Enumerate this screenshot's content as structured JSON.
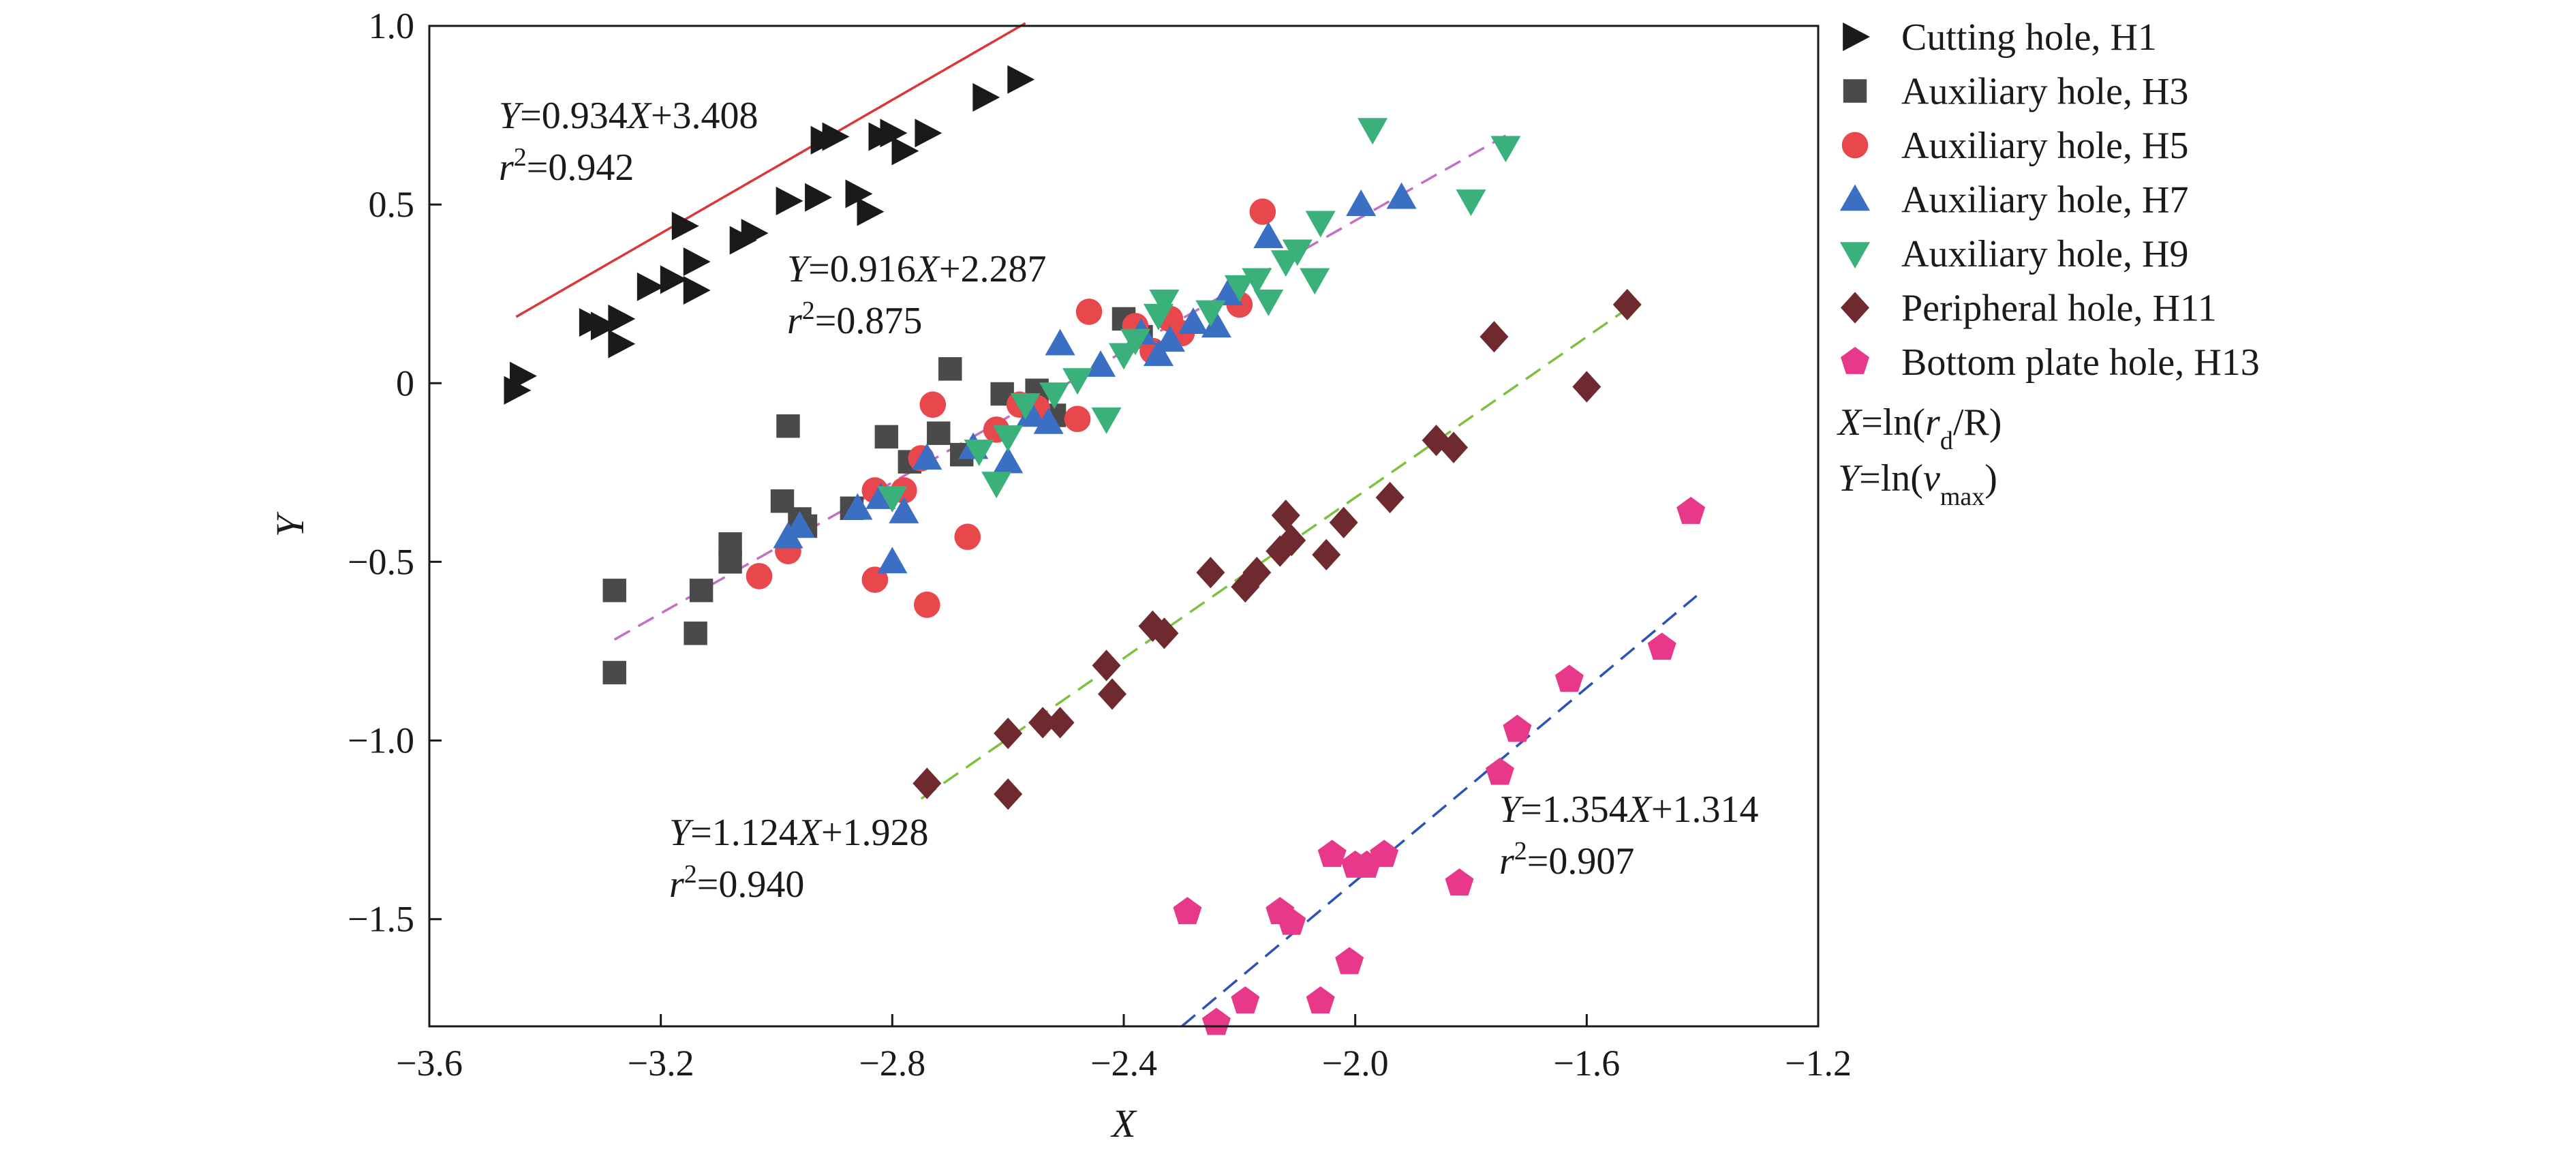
{
  "chart_data": {
    "type": "scatter",
    "xlabel": "X",
    "ylabel": "Y",
    "xlim": [
      -3.6,
      -1.2
    ],
    "ylim": [
      -1.8,
      1.0
    ],
    "xticks": [
      -3.6,
      -3.2,
      -2.8,
      -2.4,
      -2.0,
      -1.6,
      -1.2
    ],
    "xtick_labels": [
      "−3.6",
      "−3.2",
      "−2.8",
      "−2.4",
      "−2.0",
      "−1.6",
      "−1.2"
    ],
    "yticks": [
      -1.5,
      -1.0,
      -0.5,
      0,
      0.5,
      1.0
    ],
    "ytick_labels": [
      "−1.5",
      "−1.0",
      "−0.5",
      "0",
      "0.5",
      "1.0"
    ],
    "grid": false,
    "legend_position": "outside-right",
    "legend_notes": [
      {
        "lhs": "X",
        "eq": "=ln(",
        "var": "r",
        "sub": "d",
        "tail": "/R)"
      },
      {
        "lhs": "Y",
        "eq": "=ln(",
        "var": "v",
        "sub": "max",
        "tail": ")"
      }
    ],
    "series": [
      {
        "name": "Cutting hole, H1",
        "marker": "triangle-right",
        "color": "#1a1a1a",
        "points": [
          [
            -3.45,
            -0.02
          ],
          [
            -3.44,
            0.02
          ],
          [
            -3.32,
            0.17
          ],
          [
            -3.3,
            0.16
          ],
          [
            -3.27,
            0.18
          ],
          [
            -3.27,
            0.11
          ],
          [
            -3.22,
            0.27
          ],
          [
            -3.18,
            0.29
          ],
          [
            -3.16,
            0.44
          ],
          [
            -3.14,
            0.26
          ],
          [
            -3.14,
            0.34
          ],
          [
            -3.06,
            0.4
          ],
          [
            -3.04,
            0.42
          ],
          [
            -2.98,
            0.51
          ],
          [
            -2.93,
            0.52
          ],
          [
            -2.92,
            0.68
          ],
          [
            -2.9,
            0.69
          ],
          [
            -2.86,
            0.53
          ],
          [
            -2.84,
            0.48
          ],
          [
            -2.82,
            0.69
          ],
          [
            -2.8,
            0.7
          ],
          [
            -2.78,
            0.65
          ],
          [
            -2.74,
            0.7
          ],
          [
            -2.64,
            0.8
          ],
          [
            -2.58,
            0.85
          ]
        ]
      },
      {
        "name": "Auxiliary hole, H3",
        "marker": "square",
        "color": "#4a4a4a",
        "points": [
          [
            -3.28,
            -0.58
          ],
          [
            -3.28,
            -0.81
          ],
          [
            -3.14,
            -0.7
          ],
          [
            -3.13,
            -0.58
          ],
          [
            -3.08,
            -0.45
          ],
          [
            -3.08,
            -0.5
          ],
          [
            -2.99,
            -0.33
          ],
          [
            -2.98,
            -0.12
          ],
          [
            -2.96,
            -0.38
          ],
          [
            -2.95,
            -0.4
          ],
          [
            -2.87,
            -0.35
          ],
          [
            -2.81,
            -0.15
          ],
          [
            -2.77,
            -0.22
          ],
          [
            -2.72,
            -0.14
          ],
          [
            -2.7,
            0.04
          ],
          [
            -2.68,
            -0.2
          ],
          [
            -2.61,
            -0.03
          ],
          [
            -2.55,
            -0.02
          ],
          [
            -2.52,
            -0.09
          ],
          [
            -2.4,
            0.18
          ],
          [
            -2.37,
            0.13
          ]
        ]
      },
      {
        "name": "Auxiliary hole, H5",
        "marker": "circle",
        "color": "#e8474c",
        "points": [
          [
            -3.03,
            -0.54
          ],
          [
            -2.98,
            -0.47
          ],
          [
            -2.83,
            -0.55
          ],
          [
            -2.83,
            -0.3
          ],
          [
            -2.78,
            -0.3
          ],
          [
            -2.75,
            -0.21
          ],
          [
            -2.74,
            -0.62
          ],
          [
            -2.73,
            -0.06
          ],
          [
            -2.67,
            -0.43
          ],
          [
            -2.62,
            -0.13
          ],
          [
            -2.58,
            -0.06
          ],
          [
            -2.55,
            -0.07
          ],
          [
            -2.48,
            -0.1
          ],
          [
            -2.46,
            0.2
          ],
          [
            -2.38,
            0.16
          ],
          [
            -2.35,
            0.09
          ],
          [
            -2.32,
            0.18
          ],
          [
            -2.3,
            0.14
          ],
          [
            -2.2,
            0.22
          ],
          [
            -2.16,
            0.48
          ]
        ]
      },
      {
        "name": "Auxiliary hole, H7",
        "marker": "triangle-up",
        "color": "#3a6fc4",
        "points": [
          [
            -2.98,
            -0.43
          ],
          [
            -2.96,
            -0.4
          ],
          [
            -2.86,
            -0.35
          ],
          [
            -2.82,
            -0.32
          ],
          [
            -2.8,
            -0.5
          ],
          [
            -2.78,
            -0.36
          ],
          [
            -2.74,
            -0.21
          ],
          [
            -2.66,
            -0.18
          ],
          [
            -2.6,
            -0.22
          ],
          [
            -2.56,
            -0.09
          ],
          [
            -2.53,
            -0.11
          ],
          [
            -2.51,
            0.11
          ],
          [
            -2.44,
            0.05
          ],
          [
            -2.37,
            0.14
          ],
          [
            -2.34,
            0.08
          ],
          [
            -2.32,
            0.12
          ],
          [
            -2.28,
            0.17
          ],
          [
            -2.24,
            0.16
          ],
          [
            -2.22,
            0.25
          ],
          [
            -2.15,
            0.41
          ],
          [
            -1.99,
            0.5
          ],
          [
            -1.92,
            0.52
          ]
        ]
      },
      {
        "name": "Auxiliary hole, H9",
        "marker": "triangle-down",
        "color": "#3ab07a",
        "points": [
          [
            -2.8,
            -0.32
          ],
          [
            -2.65,
            -0.19
          ],
          [
            -2.62,
            -0.28
          ],
          [
            -2.6,
            -0.15
          ],
          [
            -2.57,
            -0.06
          ],
          [
            -2.52,
            -0.03
          ],
          [
            -2.48,
            0.01
          ],
          [
            -2.43,
            -0.1
          ],
          [
            -2.4,
            0.08
          ],
          [
            -2.38,
            0.12
          ],
          [
            -2.34,
            0.19
          ],
          [
            -2.33,
            0.23
          ],
          [
            -2.25,
            0.2
          ],
          [
            -2.2,
            0.27
          ],
          [
            -2.17,
            0.29
          ],
          [
            -2.15,
            0.23
          ],
          [
            -2.12,
            0.34
          ],
          [
            -2.1,
            0.37
          ],
          [
            -2.07,
            0.29
          ],
          [
            -2.06,
            0.45
          ],
          [
            -1.97,
            0.71
          ],
          [
            -1.8,
            0.51
          ],
          [
            -1.74,
            0.66
          ]
        ]
      },
      {
        "name": "Peripheral hole, H11",
        "marker": "diamond",
        "color": "#6e2a2e",
        "points": [
          [
            -2.74,
            -1.12
          ],
          [
            -2.6,
            -1.15
          ],
          [
            -2.6,
            -0.98
          ],
          [
            -2.54,
            -0.95
          ],
          [
            -2.51,
            -0.95
          ],
          [
            -2.43,
            -0.79
          ],
          [
            -2.42,
            -0.87
          ],
          [
            -2.35,
            -0.68
          ],
          [
            -2.33,
            -0.7
          ],
          [
            -2.25,
            -0.53
          ],
          [
            -2.19,
            -0.57
          ],
          [
            -2.17,
            -0.53
          ],
          [
            -2.13,
            -0.47
          ],
          [
            -2.12,
            -0.37
          ],
          [
            -2.11,
            -0.44
          ],
          [
            -2.05,
            -0.48
          ],
          [
            -2.02,
            -0.39
          ],
          [
            -1.94,
            -0.32
          ],
          [
            -1.86,
            -0.16
          ],
          [
            -1.83,
            -0.18
          ],
          [
            -1.76,
            0.13
          ],
          [
            -1.6,
            -0.01
          ],
          [
            -1.53,
            0.22
          ]
        ]
      },
      {
        "name": "Bottom plate hole, H13",
        "marker": "pentagon",
        "color": "#e8388a",
        "points": [
          [
            -2.29,
            -1.48
          ],
          [
            -2.24,
            -1.79
          ],
          [
            -2.19,
            -1.73
          ],
          [
            -2.13,
            -1.48
          ],
          [
            -2.11,
            -1.51
          ],
          [
            -2.06,
            -1.73
          ],
          [
            -2.04,
            -1.32
          ],
          [
            -2.01,
            -1.62
          ],
          [
            -2.0,
            -1.35
          ],
          [
            -1.98,
            -1.35
          ],
          [
            -1.95,
            -1.32
          ],
          [
            -1.82,
            -1.4
          ],
          [
            -1.75,
            -1.09
          ],
          [
            -1.72,
            -0.97
          ],
          [
            -1.63,
            -0.83
          ],
          [
            -1.47,
            -0.74
          ],
          [
            -1.42,
            -0.36
          ]
        ]
      }
    ],
    "fit_lines": [
      {
        "slope": 0.934,
        "intercept": 3.408,
        "x_range": [
          -3.45,
          -2.57
        ],
        "color": "#d93838",
        "dashed": false,
        "equation": {
          "lhs": "Y",
          "mid": "=0.934",
          "var": "X",
          "tail": "+3.408"
        },
        "r2": "=0.942"
      },
      {
        "slope": 0.916,
        "intercept": 2.287,
        "x_range": [
          -3.28,
          -1.74
        ],
        "color": "#c46ec4",
        "dashed": true,
        "equation": {
          "lhs": "Y",
          "mid": "=0.916",
          "var": "X",
          "tail": "+2.287"
        },
        "r2": "=0.875"
      },
      {
        "slope": 1.124,
        "intercept": 1.928,
        "x_range": [
          -2.75,
          -1.53
        ],
        "color": "#7cc23f",
        "dashed": true,
        "equation": {
          "lhs": "Y",
          "mid": "=1.124",
          "var": "X",
          "tail": "+1.928"
        },
        "r2": "=0.940"
      },
      {
        "slope": 1.354,
        "intercept": 1.314,
        "x_range": [
          -2.3,
          -1.41
        ],
        "color": "#2b52b8",
        "dashed": true,
        "equation": {
          "lhs": "Y",
          "mid": "=1.354",
          "var": "X",
          "tail": "+1.314"
        },
        "r2": "=0.907"
      }
    ]
  }
}
